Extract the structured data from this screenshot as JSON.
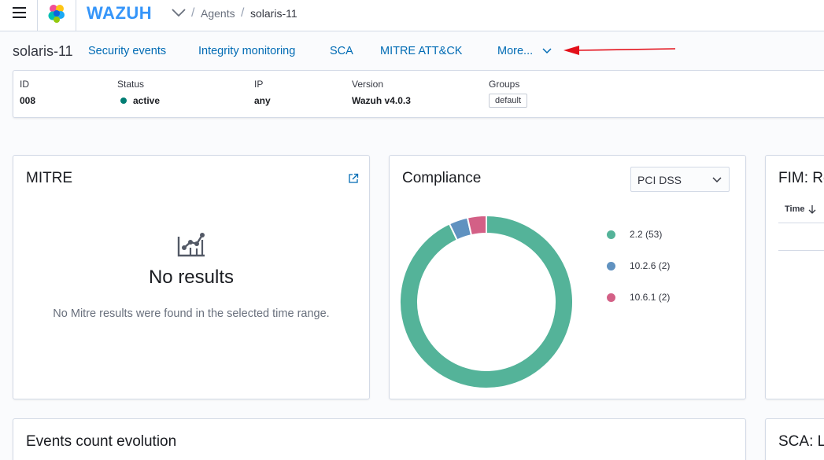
{
  "header": {
    "brand": "WAZUH",
    "breadcrumb": [
      "Agents",
      "solaris-11"
    ]
  },
  "agent_nav": {
    "name": "solaris-11",
    "tabs": [
      "Security events",
      "Integrity monitoring",
      "SCA",
      "MITRE ATT&CK",
      "More..."
    ]
  },
  "agent_info": {
    "id_label": "ID",
    "id_value": "008",
    "status_label": "Status",
    "status_value": "active",
    "ip_label": "IP",
    "ip_value": "any",
    "version_label": "Version",
    "version_value": "Wazuh v4.0.3",
    "groups_label": "Groups",
    "groups_value": "default"
  },
  "mitre_panel": {
    "title": "MITRE",
    "empty_title": "No results",
    "empty_text": "No Mitre results were found in the selected time range."
  },
  "compliance_panel": {
    "title": "Compliance",
    "selected_standard": "PCI DSS"
  },
  "chart_data": {
    "type": "pie",
    "title": "",
    "categories": [
      "2.2",
      "10.2.6",
      "10.6.1"
    ],
    "values": [
      53,
      2,
      2
    ],
    "legend": [
      "2.2 (53)",
      "10.2.6 (2)",
      "10.6.1 (2)"
    ],
    "colors": [
      "#54b399",
      "#6092c0",
      "#d36086"
    ],
    "donut": true,
    "legend_position": "right"
  },
  "fim_panel": {
    "title": "FIM: Re",
    "time_column": "Time"
  },
  "events_panel": {
    "title": "Events count evolution"
  },
  "sca_panel": {
    "title": "SCA: La"
  },
  "colors": {
    "link": "#006bb4",
    "brand": "#3595f9",
    "status_active": "#017d73",
    "annotation_arrow": "#e3101a"
  }
}
